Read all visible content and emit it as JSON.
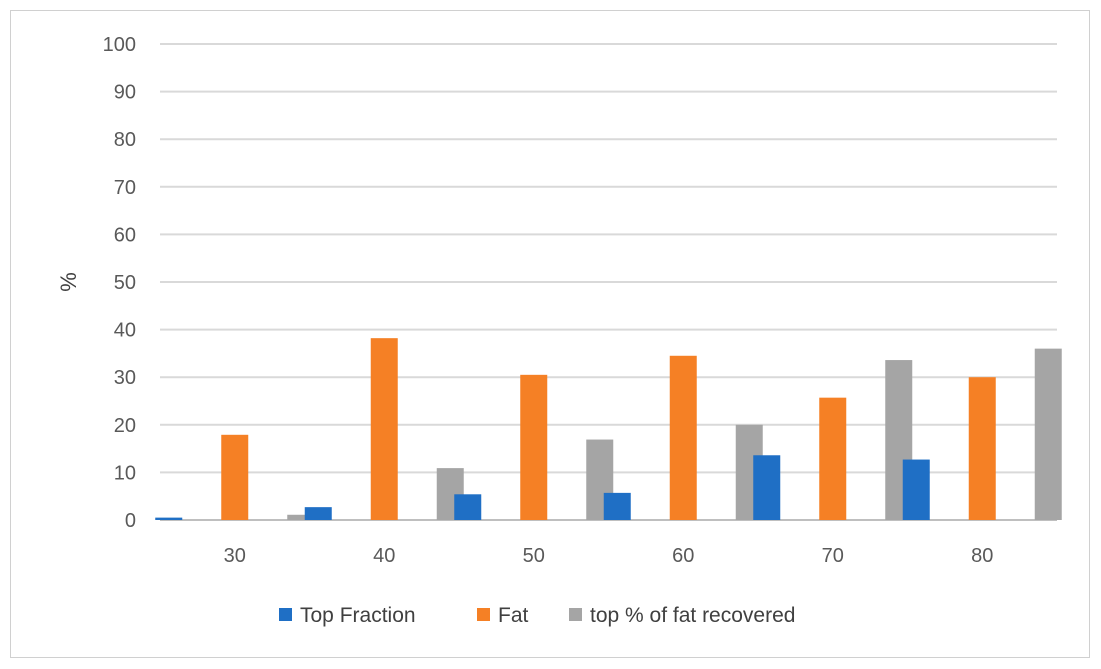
{
  "chart_data": {
    "type": "bar",
    "title": "",
    "xlabel": "",
    "ylabel": "%",
    "ylim": [
      0,
      100
    ],
    "yticks": [
      0,
      10,
      20,
      30,
      40,
      50,
      60,
      70,
      80,
      90,
      100
    ],
    "grid": true,
    "legend_position": "bottom",
    "categories": [
      "30",
      "40",
      "50",
      "60",
      "70",
      "80"
    ],
    "series": [
      {
        "name": "Top Fraction",
        "color": "#1f6fc5",
        "values": [
          0.5,
          2.7,
          5.4,
          5.7,
          13.6,
          12.7
        ]
      },
      {
        "name": "Fat",
        "color": "#f58025",
        "values": [
          17.9,
          38.2,
          30.5,
          34.5,
          25.7,
          30.0
        ]
      },
      {
        "name": "top % of fat recovered",
        "color": "#a5a5a5",
        "values": [
          1.1,
          10.9,
          16.9,
          20.0,
          33.6,
          36.0
        ]
      }
    ]
  }
}
